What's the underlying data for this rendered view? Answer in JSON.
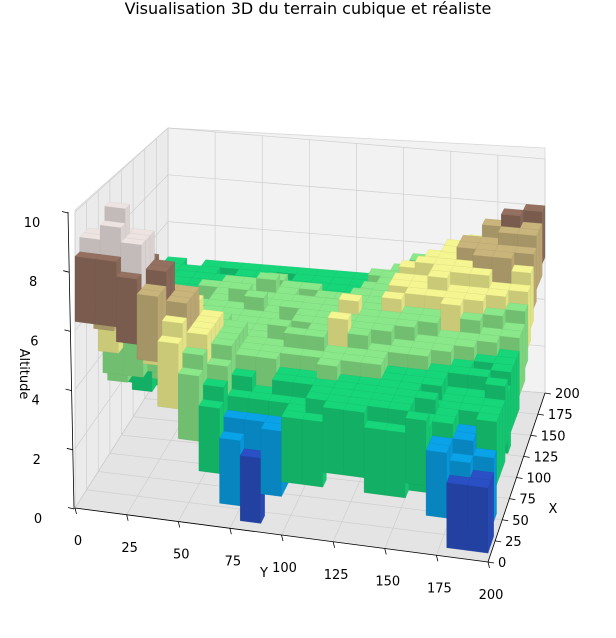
{
  "chart_data": {
    "type": "surface3d",
    "title": "Visualisation 3D du terrain cubique et réaliste",
    "xlabel": "X",
    "ylabel": "Y",
    "zlabel": "Altitude",
    "xlim": [
      0,
      200
    ],
    "ylim": [
      0,
      200
    ],
    "zlim": [
      0,
      10
    ],
    "x_ticks": [
      "0",
      "25",
      "50",
      "75",
      "100",
      "125",
      "150",
      "175",
      "200"
    ],
    "y_ticks": [
      "0",
      "25",
      "50",
      "75",
      "100",
      "125",
      "150",
      "175",
      "200"
    ],
    "z_ticks": [
      "0",
      "2",
      "4",
      "6",
      "8",
      "10"
    ],
    "grid": true,
    "colormap": "terrain",
    "color_bands": [
      {
        "z_max": 2.5,
        "color": "#2b4fc4"
      },
      {
        "z_max": 3.6,
        "color": "#0aa2e8"
      },
      {
        "z_max": 4.8,
        "color": "#17d67a"
      },
      {
        "z_max": 5.9,
        "color": "#8ae88a"
      },
      {
        "z_max": 6.9,
        "color": "#f5f592"
      },
      {
        "z_max": 7.7,
        "color": "#c9b47c"
      },
      {
        "z_max": 8.8,
        "color": "#93705f"
      },
      {
        "z_max": 10,
        "color": "#ede4e2"
      }
    ]
  }
}
